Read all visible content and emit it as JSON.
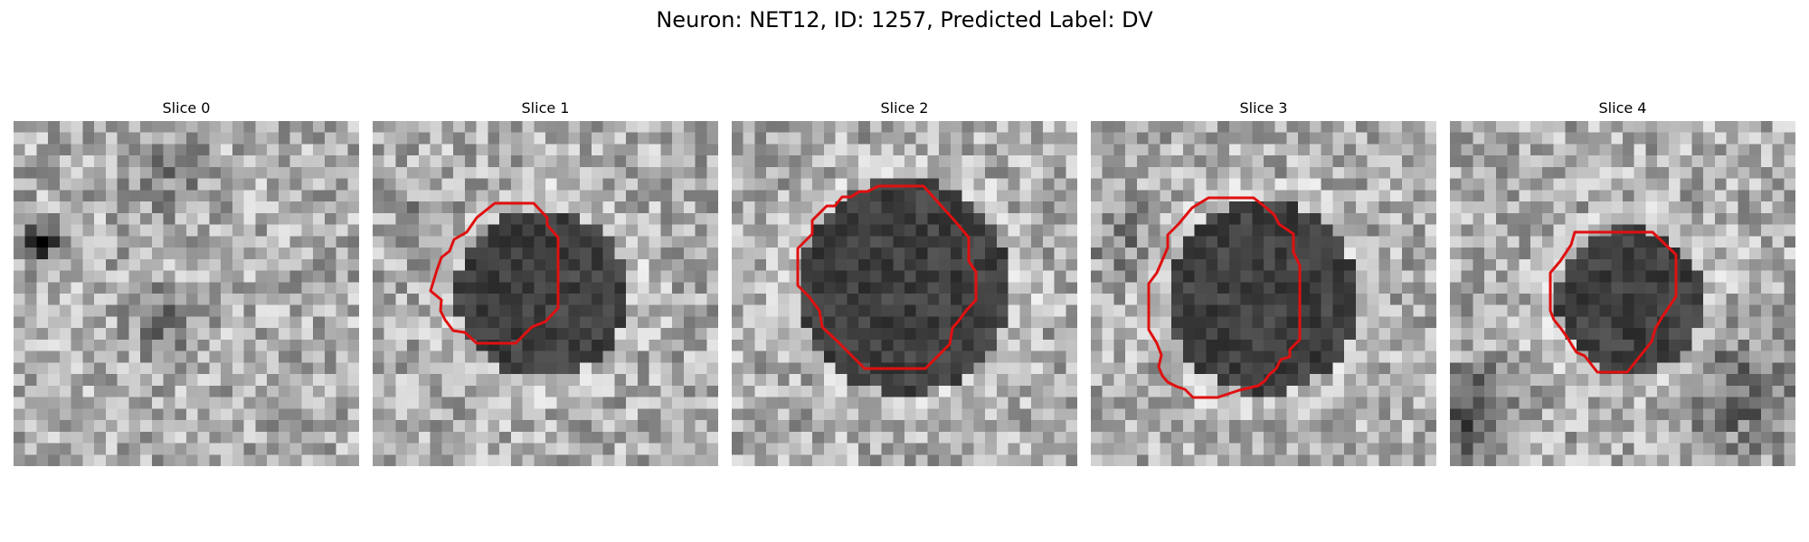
{
  "figure": {
    "title": "Neuron: NET12, ID: 1257, Predicted Label: DV",
    "outline_color": "#e01010"
  },
  "panels": [
    {
      "label": "Slice 0",
      "has_outline": false
    },
    {
      "label": "Slice 1",
      "has_outline": true
    },
    {
      "label": "Slice 2",
      "has_outline": true
    },
    {
      "label": "Slice 3",
      "has_outline": true
    },
    {
      "label": "Slice 4",
      "has_outline": true
    }
  ]
}
